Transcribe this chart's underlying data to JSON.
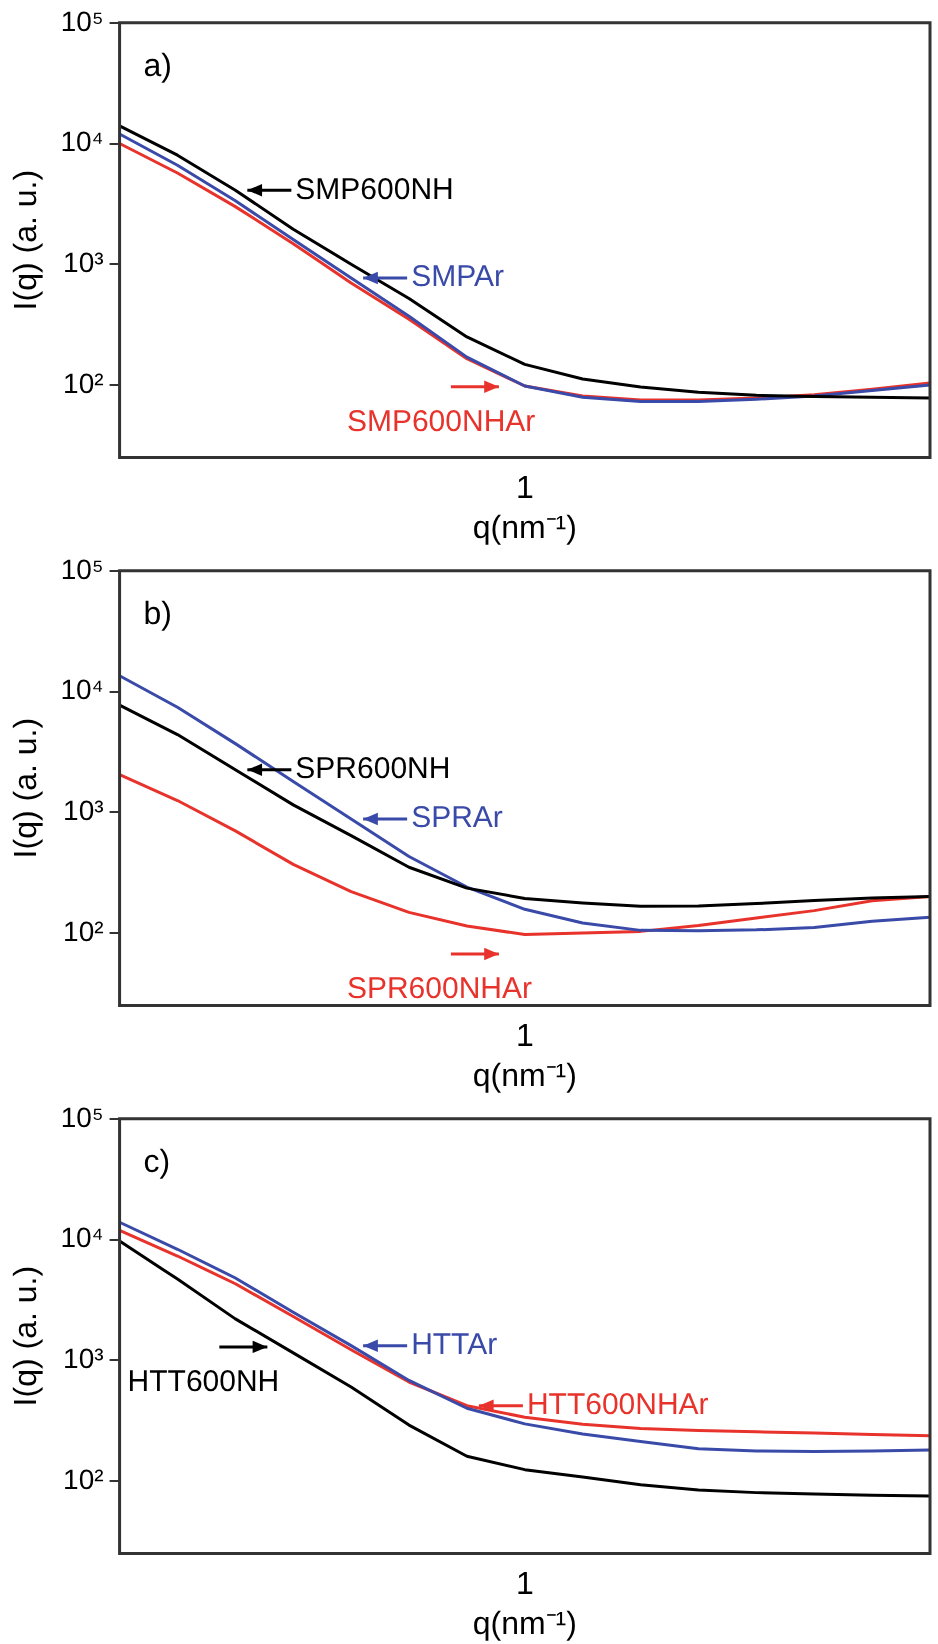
{
  "chart_data": [
    {
      "type": "line",
      "xlabel": "q(nm⁻¹)",
      "ylabel": "I(q) (a. u.)",
      "log": "y",
      "grid": false,
      "marker": "none",
      "ylim": [
        25,
        100000
      ],
      "yticks": [
        {
          "value": 100,
          "label": "10²"
        },
        {
          "value": 1000,
          "label": "10³"
        },
        {
          "value": 10000,
          "label": "10⁴"
        },
        {
          "value": 100000,
          "label": "10⁵"
        }
      ],
      "categories": [
        null,
        null,
        null,
        null,
        null,
        null,
        null,
        null,
        null,
        null,
        null,
        null,
        null,
        null,
        null
      ],
      "series": [
        {
          "name": "SMP600NH",
          "color": "#000000",
          "values": [
            14000,
            8000,
            4100,
            1950,
            1000,
            520,
            250,
            148,
            112,
            96,
            87,
            82,
            80,
            79,
            78
          ]
        },
        {
          "name": "SMPAr",
          "color": "#3a4aa8",
          "values": [
            12000,
            6600,
            3350,
            1600,
            770,
            370,
            170,
            98,
            79,
            73,
            73,
            76,
            81,
            90,
            100
          ]
        },
        {
          "name": "SMP600NHAr",
          "color": "#e8332c",
          "values": [
            10000,
            5700,
            3000,
            1480,
            700,
            350,
            165,
            98,
            81,
            75,
            75,
            78,
            83,
            92,
            104
          ]
        }
      ],
      "annotations": [
        "a)",
        "1"
      ],
      "legend": "left"
    },
    {
      "type": "line",
      "xlabel": "q(nm⁻¹)",
      "ylabel": "I(q) (a. u.)",
      "log": "y",
      "grid": false,
      "marker": "none",
      "ylim": [
        25,
        100000
      ],
      "yticks": [
        {
          "value": 100,
          "label": "10²"
        },
        {
          "value": 1000,
          "label": "10³"
        },
        {
          "value": 10000,
          "label": "10⁴"
        },
        {
          "value": 100000,
          "label": "10⁵"
        }
      ],
      "categories": [
        null,
        null,
        null,
        null,
        null,
        null,
        null,
        null,
        null,
        null,
        null,
        null,
        null,
        null,
        null
      ],
      "series": [
        {
          "name": "SPR600NH",
          "color": "#000000",
          "values": [
            7700,
            4400,
            2250,
            1150,
            640,
            350,
            235,
            193,
            177,
            166,
            167,
            175,
            186,
            195,
            200
          ]
        },
        {
          "name": "SPRAr",
          "color": "#3a4aa8",
          "values": [
            13500,
            7400,
            3700,
            1800,
            880,
            430,
            240,
            157,
            121,
            105,
            104,
            106,
            111,
            125,
            135
          ]
        },
        {
          "name": "SPR600NHAr",
          "color": "#e8332c",
          "values": [
            2050,
            1250,
            700,
            370,
            220,
            148,
            114,
            97,
            100,
            103,
            115,
            133,
            153,
            185,
            200
          ]
        }
      ],
      "annotations": [
        "b)",
        "1"
      ],
      "legend": "left"
    },
    {
      "type": "line",
      "xlabel": "q(nm⁻¹)",
      "ylabel": "I(q) (a. u.)",
      "log": "y",
      "grid": false,
      "marker": "none",
      "ylim": [
        25,
        100000
      ],
      "yticks": [
        {
          "value": 100,
          "label": "10²"
        },
        {
          "value": 1000,
          "label": "10³"
        },
        {
          "value": 10000,
          "label": "10⁴"
        },
        {
          "value": 100000,
          "label": "10⁵"
        }
      ],
      "categories": [
        null,
        null,
        null,
        null,
        null,
        null,
        null,
        null,
        null,
        null,
        null,
        null,
        null,
        null,
        null
      ],
      "series": [
        {
          "name": "HTT600NH",
          "color": "#000000",
          "values": [
            9700,
            4700,
            2200,
            1150,
            600,
            290,
            160,
            124,
            108,
            93,
            84,
            80,
            78,
            76,
            75
          ]
        },
        {
          "name": "HTTAr",
          "color": "#3a4aa8",
          "values": [
            13900,
            8300,
            4800,
            2500,
            1320,
            680,
            400,
            297,
            245,
            212,
            185,
            177,
            175,
            177,
            180
          ]
        },
        {
          "name": "HTT600NHAr",
          "color": "#e8332c",
          "values": [
            11900,
            7300,
            4300,
            2300,
            1220,
            660,
            420,
            337,
            295,
            272,
            262,
            255,
            249,
            243,
            237
          ]
        }
      ],
      "annotations": [
        "c)",
        "1"
      ],
      "legend": "left"
    }
  ]
}
